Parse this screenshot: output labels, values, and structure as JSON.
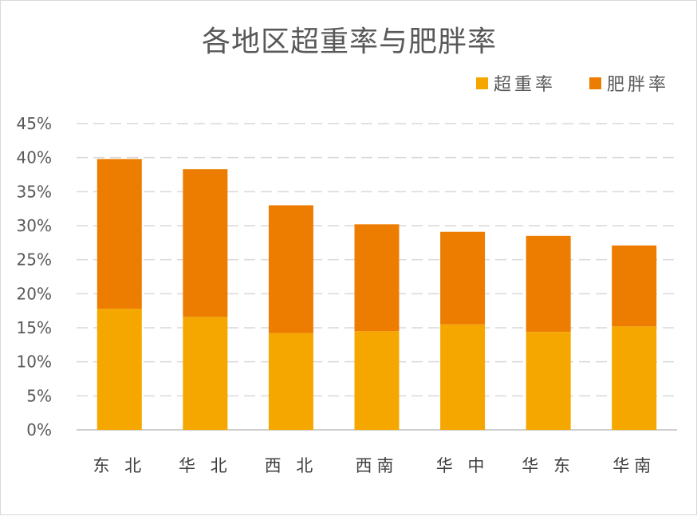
{
  "chart_data": {
    "type": "bar",
    "stacked": true,
    "title": "各地区超重率与肥胖率",
    "categories": [
      "东 北",
      "华 北",
      "西 北",
      "西南",
      "华 中",
      "华 东",
      "华南"
    ],
    "series": [
      {
        "name": "超重率",
        "color": "#f5a700",
        "values": [
          17.8,
          16.6,
          14.2,
          14.5,
          15.5,
          14.4,
          15.2
        ]
      },
      {
        "name": "肥胖率",
        "color": "#ed7d00",
        "values": [
          22.0,
          21.7,
          18.8,
          15.7,
          13.6,
          14.1,
          11.9
        ]
      }
    ],
    "y_ticks": [
      "0%",
      "5%",
      "10%",
      "15%",
      "20%",
      "25%",
      "30%",
      "35%",
      "40%",
      "45%"
    ],
    "ylim": [
      0,
      45
    ],
    "grid": true,
    "legend_position": "top-right"
  }
}
